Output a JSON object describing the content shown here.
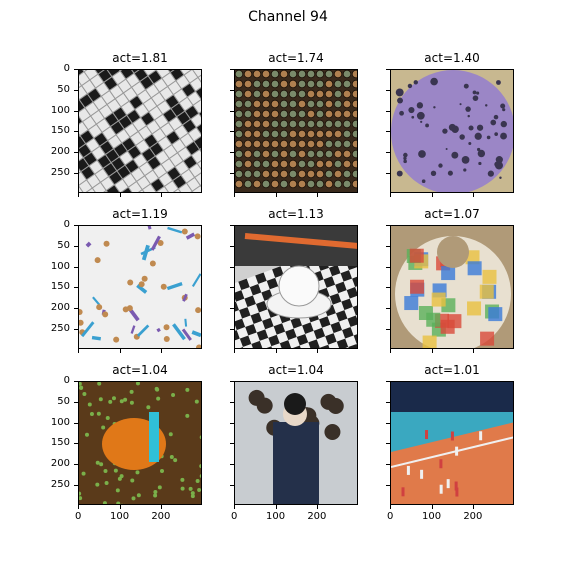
{
  "figure": {
    "title": "Channel 94"
  },
  "panels": [
    {
      "title": "act=1.81",
      "image": "crossword-grid",
      "colors": [
        "#e8e8e8",
        "#1a1a1a",
        "#9a9a9a"
      ]
    },
    {
      "title": "act=1.74",
      "image": "bottle-caps-shelves",
      "colors": [
        "#3a2a1c",
        "#b08050",
        "#7a8a6a"
      ]
    },
    {
      "title": "act=1.40",
      "image": "petri-dish-colonies",
      "colors": [
        "#9b86c6",
        "#3a3550",
        "#c8b890"
      ]
    },
    {
      "title": "act=1.19",
      "image": "geometry-tools-pattern",
      "colors": [
        "#f0f0f0",
        "#3aa0d0",
        "#7a5ab0"
      ]
    },
    {
      "title": "act=1.13",
      "image": "teacup-on-checkerboard",
      "colors": [
        "#d0d0d0",
        "#202020",
        "#e06a30"
      ]
    },
    {
      "title": "act=1.07",
      "image": "patchwork-bib",
      "colors": [
        "#b09a78",
        "#e8e0d0",
        "#d84a3a"
      ]
    },
    {
      "title": "act=1.04",
      "image": "clownfish-anemone",
      "colors": [
        "#5a3a1a",
        "#e07818",
        "#30c0d8"
      ]
    },
    {
      "title": "act=1.04",
      "image": "woman-in-kimono-crowd",
      "colors": [
        "#c8ccd0",
        "#24304a",
        "#e8d8c8"
      ]
    },
    {
      "title": "act=1.01",
      "image": "volleyball-court",
      "colors": [
        "#3aa8c0",
        "#e07a4a",
        "#2a2a30"
      ]
    }
  ],
  "axes": {
    "yticks": [
      "0",
      "50",
      "100",
      "150",
      "200",
      "250"
    ],
    "xticks": [
      "0",
      "100",
      "200"
    ],
    "xlim": [
      0,
      299
    ],
    "ylim": [
      299,
      0
    ]
  },
  "chart_data": {
    "type": "image-grid",
    "title": "Channel 94",
    "rows": 3,
    "cols": 3,
    "activations": [
      1.81,
      1.74,
      1.4,
      1.19,
      1.13,
      1.07,
      1.04,
      1.04,
      1.01
    ],
    "xlim": [
      0,
      299
    ],
    "ylim": [
      299,
      0
    ],
    "xticks": [
      0,
      100,
      200
    ],
    "yticks": [
      0,
      50,
      100,
      150,
      200,
      250
    ],
    "grid": false
  }
}
